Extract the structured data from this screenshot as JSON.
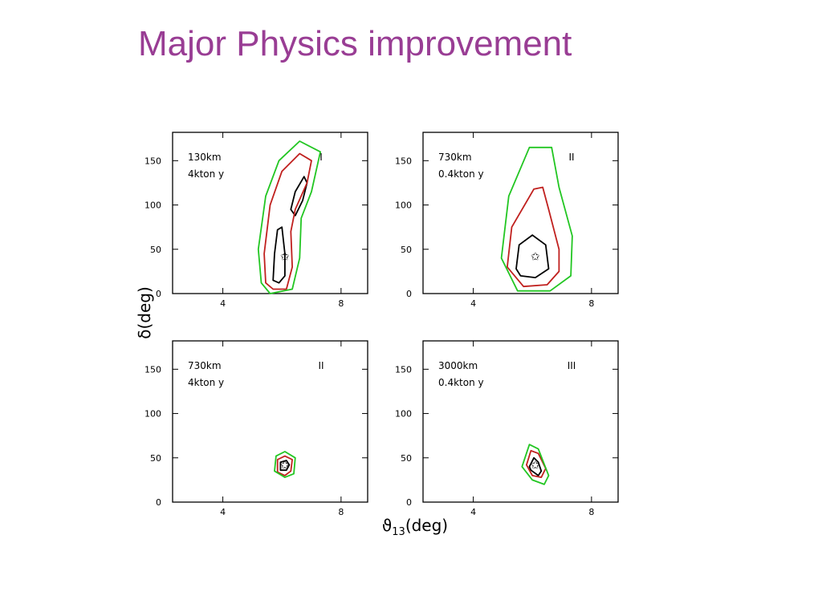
{
  "title": "Major Physics improvement",
  "colors": {
    "title": "#993d94",
    "frame": "#000000",
    "c1": "#000000",
    "c2": "#c0201e",
    "c3": "#22c622"
  },
  "chart_data": [
    {
      "type": "contour",
      "x_axis": {
        "range": [
          2.3,
          8.9
        ],
        "ticks": [
          4,
          8
        ]
      },
      "y_axis": {
        "range": [
          0,
          182
        ],
        "ticks": [
          0,
          50,
          100,
          150
        ]
      },
      "xlabel": "ϑ13(deg)",
      "ylabel": "δ(deg)",
      "panels": [
        {
          "labels": [
            "130km",
            "4kton y"
          ],
          "roman": "I",
          "best_fit": [
            6.1,
            42
          ],
          "contours": [
            {
              "level": 1,
              "path": [
                [
                  5.7,
                  15
                ],
                [
                  5.75,
                  45
                ],
                [
                  5.85,
                  72
                ],
                [
                  6.0,
                  75
                ],
                [
                  6.1,
                  45
                ],
                [
                  6.1,
                  20
                ],
                [
                  5.9,
                  12
                ],
                [
                  5.7,
                  15
                ]
              ]
            },
            {
              "level": 1,
              "path": [
                [
                  6.3,
                  95
                ],
                [
                  6.45,
                  115
                ],
                [
                  6.75,
                  132
                ],
                [
                  6.85,
                  125
                ],
                [
                  6.7,
                  105
                ],
                [
                  6.45,
                  88
                ],
                [
                  6.3,
                  95
                ]
              ]
            },
            {
              "level": 2,
              "path": [
                [
                  5.45,
                  12
                ],
                [
                  5.4,
                  45
                ],
                [
                  5.6,
                  100
                ],
                [
                  6.0,
                  138
                ],
                [
                  6.6,
                  158
                ],
                [
                  7.0,
                  150
                ],
                [
                  6.85,
                  125
                ],
                [
                  6.45,
                  95
                ],
                [
                  6.3,
                  70
                ],
                [
                  6.35,
                  30
                ],
                [
                  6.15,
                  5
                ],
                [
                  5.7,
                  5
                ],
                [
                  5.45,
                  12
                ]
              ]
            },
            {
              "level": 3,
              "path": [
                [
                  5.3,
                  12
                ],
                [
                  5.2,
                  50
                ],
                [
                  5.45,
                  110
                ],
                [
                  5.9,
                  150
                ],
                [
                  6.6,
                  172
                ],
                [
                  7.3,
                  160
                ],
                [
                  7.0,
                  115
                ],
                [
                  6.65,
                  85
                ],
                [
                  6.6,
                  40
                ],
                [
                  6.35,
                  5
                ],
                [
                  5.6,
                  0
                ],
                [
                  5.3,
                  12
                ]
              ]
            }
          ]
        },
        {
          "labels": [
            "730km",
            "0.4kton y"
          ],
          "roman": "II",
          "best_fit": [
            6.1,
            42
          ],
          "contours": [
            {
              "level": 1,
              "path": [
                [
                  5.45,
                  28
                ],
                [
                  5.55,
                  55
                ],
                [
                  6.0,
                  66
                ],
                [
                  6.45,
                  55
                ],
                [
                  6.55,
                  28
                ],
                [
                  6.1,
                  18
                ],
                [
                  5.6,
                  20
                ],
                [
                  5.45,
                  28
                ]
              ]
            },
            {
              "level": 2,
              "path": [
                [
                  5.15,
                  30
                ],
                [
                  5.3,
                  75
                ],
                [
                  6.05,
                  118
                ],
                [
                  6.35,
                  120
                ],
                [
                  6.55,
                  95
                ],
                [
                  6.9,
                  50
                ],
                [
                  6.9,
                  25
                ],
                [
                  6.5,
                  10
                ],
                [
                  5.7,
                  8
                ],
                [
                  5.15,
                  30
                ]
              ]
            },
            {
              "level": 3,
              "path": [
                [
                  4.95,
                  40
                ],
                [
                  5.2,
                  110
                ],
                [
                  5.9,
                  165
                ],
                [
                  6.65,
                  165
                ],
                [
                  6.9,
                  120
                ],
                [
                  7.35,
                  65
                ],
                [
                  7.3,
                  20
                ],
                [
                  6.6,
                  3
                ],
                [
                  5.5,
                  3
                ],
                [
                  4.95,
                  40
                ]
              ]
            }
          ]
        },
        {
          "labels": [
            "730km",
            "4kton y"
          ],
          "roman": "II",
          "best_fit": [
            6.1,
            42
          ],
          "contours": [
            {
              "level": 1,
              "path": [
                [
                  5.95,
                  36
                ],
                [
                  5.95,
                  45
                ],
                [
                  6.15,
                  47
                ],
                [
                  6.25,
                  42
                ],
                [
                  6.15,
                  36
                ],
                [
                  5.95,
                  36
                ]
              ]
            },
            {
              "level": 2,
              "path": [
                [
                  5.85,
                  34
                ],
                [
                  5.85,
                  48
                ],
                [
                  6.1,
                  52
                ],
                [
                  6.35,
                  48
                ],
                [
                  6.3,
                  35
                ],
                [
                  6.1,
                  30
                ],
                [
                  5.85,
                  34
                ]
              ]
            },
            {
              "level": 3,
              "path": [
                [
                  5.75,
                  35
                ],
                [
                  5.8,
                  52
                ],
                [
                  6.1,
                  57
                ],
                [
                  6.45,
                  50
                ],
                [
                  6.4,
                  32
                ],
                [
                  6.1,
                  28
                ],
                [
                  5.75,
                  35
                ]
              ]
            }
          ]
        },
        {
          "labels": [
            "3000km",
            "0.4kton y"
          ],
          "roman": "III",
          "best_fit": [
            6.1,
            42
          ],
          "contours": [
            {
              "level": 1,
              "path": [
                [
                  5.9,
                  40
                ],
                [
                  6.05,
                  50
                ],
                [
                  6.2,
                  45
                ],
                [
                  6.3,
                  35
                ],
                [
                  6.2,
                  30
                ],
                [
                  5.95,
                  36
                ],
                [
                  5.9,
                  40
                ]
              ]
            },
            {
              "level": 2,
              "path": [
                [
                  5.8,
                  42
                ],
                [
                  5.95,
                  58
                ],
                [
                  6.2,
                  55
                ],
                [
                  6.45,
                  38
                ],
                [
                  6.3,
                  28
                ],
                [
                  6.0,
                  30
                ],
                [
                  5.8,
                  42
                ]
              ]
            },
            {
              "level": 3,
              "path": [
                [
                  5.65,
                  40
                ],
                [
                  5.9,
                  65
                ],
                [
                  6.2,
                  60
                ],
                [
                  6.55,
                  30
                ],
                [
                  6.4,
                  20
                ],
                [
                  6.0,
                  25
                ],
                [
                  5.65,
                  40
                ]
              ]
            }
          ]
        }
      ]
    }
  ]
}
